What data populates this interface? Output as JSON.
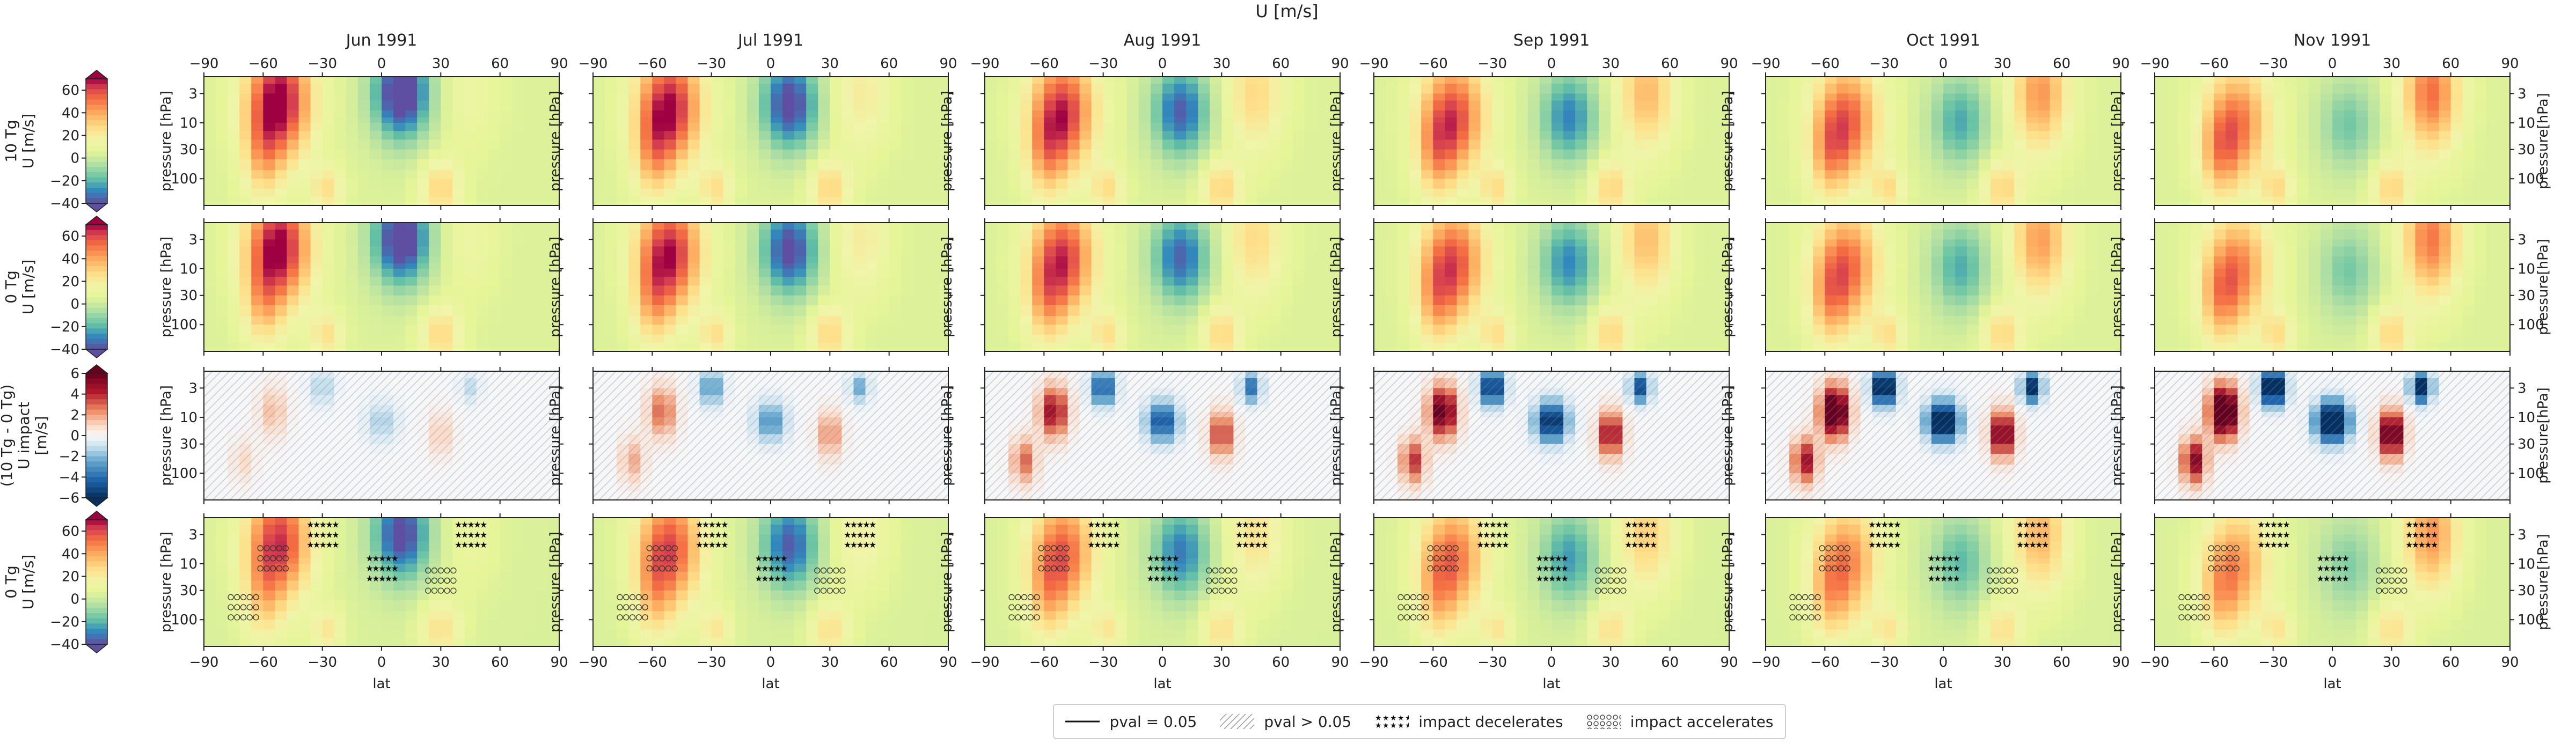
{
  "chart_data": {
    "type": "heatmap",
    "title": "U [m/s]",
    "months": [
      "Jun 1991",
      "Jul 1991",
      "Aug 1991",
      "Sep 1991",
      "Oct 1991",
      "Nov 1991"
    ],
    "xlabel": "lat",
    "xticks": [
      "−90",
      "−60",
      "−30",
      "0",
      "30",
      "60",
      "90"
    ],
    "xlim": [
      -90,
      90
    ],
    "ylabel": "pressure [hPa]",
    "ylabel_right": "pressure[hPa]",
    "yticks": [
      "3",
      "10",
      "30",
      "100"
    ],
    "yscale": "log",
    "rows": [
      {
        "label_lines": [
          "10 Tg",
          "U [m/s]"
        ],
        "colorbar_ticks": [
          "60",
          "40",
          "20",
          "0",
          "−20",
          "−40"
        ],
        "range": [
          -40,
          70
        ]
      },
      {
        "label_lines": [
          "0 Tg",
          "U [m/s]"
        ],
        "colorbar_ticks": [
          "60",
          "40",
          "20",
          "0",
          "−20",
          "−40"
        ],
        "range": [
          -40,
          70
        ]
      },
      {
        "label_lines": [
          "(10 Tg - 0 Tg)",
          "U impact",
          "[m/s]"
        ],
        "colorbar_ticks": [
          "6",
          "4",
          "2",
          "0",
          "−2",
          "−4",
          "−6"
        ],
        "range": [
          -6,
          6
        ]
      },
      {
        "label_lines": [
          "0 Tg",
          "U [m/s]"
        ],
        "colorbar_ticks": [
          "60",
          "40",
          "20",
          "0",
          "−20",
          "−40"
        ],
        "range": [
          -40,
          70
        ]
      }
    ],
    "legend": [
      {
        "key": "solid",
        "label": "pval = 0.05"
      },
      {
        "key": "hatch",
        "label": "pval > 0.05"
      },
      {
        "key": "stars",
        "label": "impact decelerates"
      },
      {
        "key": "circles",
        "label": "impact accelerates"
      }
    ]
  }
}
